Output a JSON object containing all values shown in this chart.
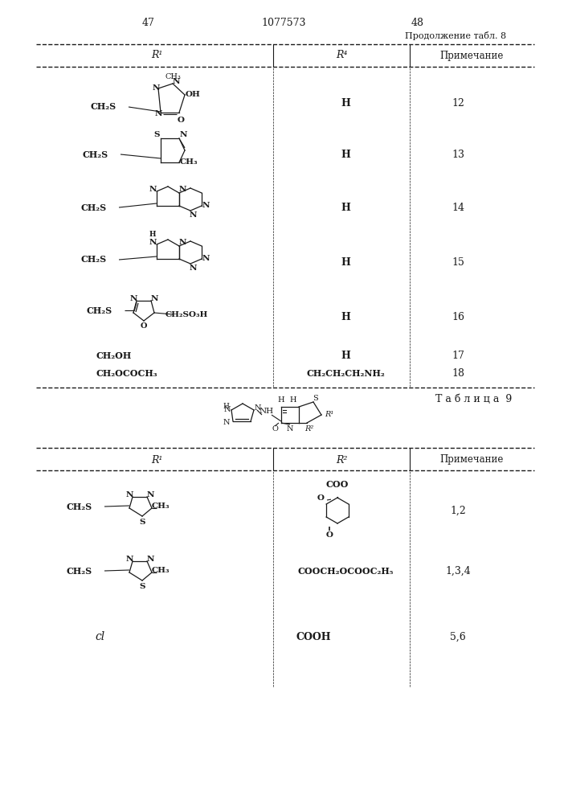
{
  "bg_color": "#ffffff",
  "text_color": "#1a1a1a",
  "page_left": "47",
  "page_center": "1077573",
  "page_right": "48",
  "tbl8_cont": "Продолжение табл. 8",
  "tbl8_c1": "R¹",
  "tbl8_c2": "R⁴",
  "tbl8_c3": "Примечание",
  "tbl9_title": "Т а б л и ц а  9",
  "tbl9_c1": "R¹",
  "tbl9_c2": "R²",
  "tbl9_c3": "Примечание"
}
